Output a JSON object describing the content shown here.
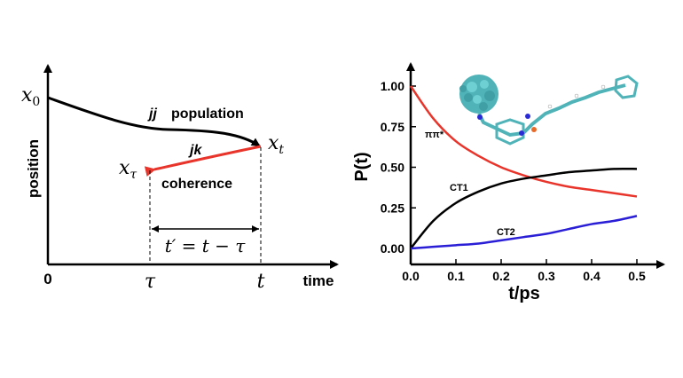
{
  "left_diagram": {
    "y_axis_label": "position",
    "x_axis_label": "time",
    "origin_label": "0",
    "x0_label": "x",
    "x0_sub": "0",
    "xt_label": "x",
    "xt_sub": "t",
    "xtau_label": "x",
    "xtau_sub": "τ",
    "jj_label": "jj",
    "population_label": "population",
    "jk_label": "jk",
    "coherence_label": "coherence",
    "tau_label": "τ",
    "t_label": "t",
    "interval_label": "t′ = t − τ",
    "colors": {
      "population": "#000000",
      "coherence": "#e8342a"
    }
  },
  "chart_data": {
    "type": "line",
    "xlabel": "t/ps",
    "ylabel": "P(t)",
    "xlim": [
      0,
      0.5
    ],
    "ylim": [
      0,
      1.0
    ],
    "xticks": [
      0.0,
      0.1,
      0.2,
      0.3,
      0.4,
      0.5
    ],
    "yticks": [
      0.0,
      0.25,
      0.5,
      0.75,
      1.0
    ],
    "xtick_labels": [
      "0.0",
      "0.1",
      "0.2",
      "0.3",
      "0.4",
      "0.5"
    ],
    "ytick_labels": [
      "0.00",
      "0.25",
      "0.50",
      "0.75",
      "1.00"
    ],
    "x": [
      0.0,
      0.05,
      0.1,
      0.15,
      0.2,
      0.25,
      0.3,
      0.35,
      0.4,
      0.45,
      0.5
    ],
    "series": [
      {
        "name": "ππ*",
        "color": "#e8342a",
        "values": [
          1.0,
          0.8,
          0.66,
          0.57,
          0.5,
          0.45,
          0.41,
          0.38,
          0.36,
          0.34,
          0.32
        ]
      },
      {
        "name": "CT1",
        "color": "#000000",
        "values": [
          0.0,
          0.17,
          0.28,
          0.35,
          0.4,
          0.43,
          0.45,
          0.47,
          0.48,
          0.49,
          0.49
        ]
      },
      {
        "name": "CT2",
        "color": "#2a1fd6",
        "values": [
          0.0,
          0.01,
          0.02,
          0.03,
          0.05,
          0.07,
          0.09,
          0.12,
          0.15,
          0.17,
          0.2
        ]
      }
    ],
    "grid": false
  }
}
